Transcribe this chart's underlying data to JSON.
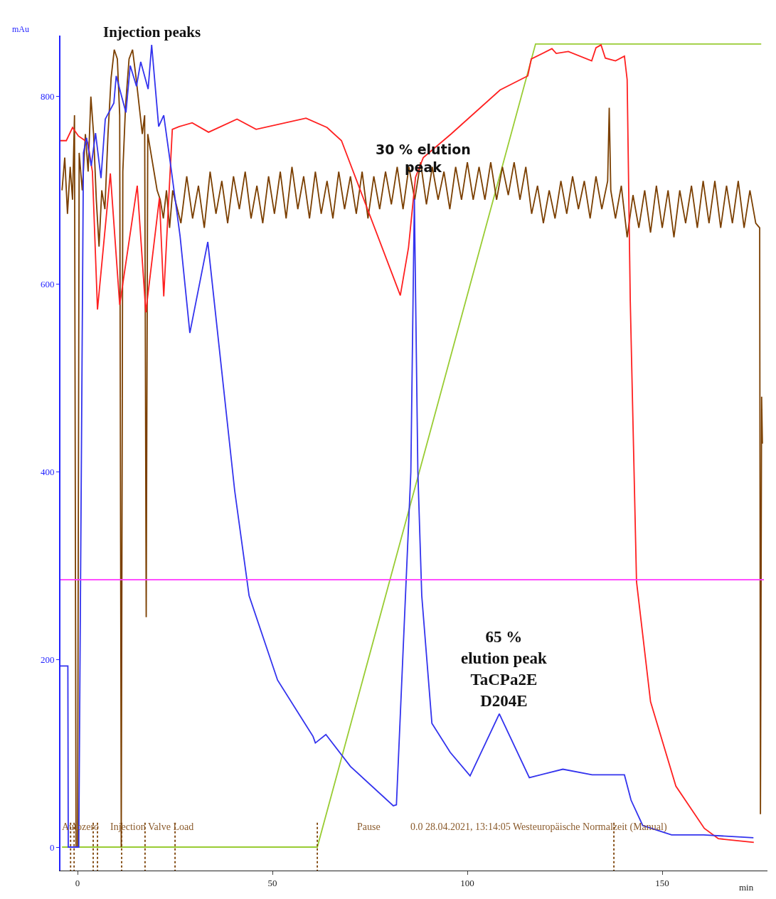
{
  "chart_data": {
    "type": "line",
    "xlabel": "min",
    "ylabel": "mAu",
    "xlim": [
      -4.4,
      177
    ],
    "ylim": [
      -25,
      865
    ],
    "xticks": [
      0,
      50,
      100,
      150
    ],
    "yticks": [
      0,
      200,
      400,
      600,
      800
    ],
    "marker": "none",
    "ref_lines": [
      {
        "axis": "y",
        "value": 285,
        "color": "#ff33ff"
      }
    ],
    "annotations": [
      {
        "text": "Injection peaks",
        "x": 19,
        "y": 858
      },
      {
        "text": "30 % elution\npeak",
        "x": 88.7,
        "y": 715
      },
      "65 %\nelution peak\nTaCPa2E\nD204E",
      "Autozero",
      "Injection Valve Load",
      "Pause",
      "0.0 28.04.2021, 13:14:05 Westeuropäische Normalzeit (Manual)"
    ],
    "series": [
      {
        "color": "#99cc33",
        "x": [
          -4,
          61.5,
          117.5,
          175.4
        ],
        "values": [
          0,
          0,
          856,
          856
        ]
      },
      {
        "color": "#7b3f00",
        "line_style": "dotted",
        "x": [
          -1.8,
          -1.8
        ],
        "values": [
          26,
          -25
        ]
      },
      {
        "color": "#7b3f00",
        "line_style": "dotted",
        "x": [
          -0.9,
          -0.9
        ],
        "values": [
          26,
          -25
        ]
      },
      {
        "color": "#7b3f00",
        "line_style": "dotted",
        "x": [
          4.0,
          4.0
        ],
        "values": [
          26,
          -25
        ]
      },
      {
        "color": "#7b3f00",
        "line_style": "dotted",
        "x": [
          5.1,
          5.1
        ],
        "values": [
          26,
          -25
        ]
      },
      {
        "color": "#7b3f00",
        "line_style": "dotted",
        "x": [
          11.3,
          11.3
        ],
        "values": [
          26,
          -25
        ]
      },
      {
        "color": "#7b3f00",
        "line_style": "dotted",
        "x": [
          17.3,
          17.3
        ],
        "values": [
          26,
          -25
        ]
      },
      {
        "color": "#7b3f00",
        "line_style": "dotted",
        "x": [
          25,
          25
        ],
        "values": [
          26,
          -25
        ]
      },
      {
        "color": "#7b3f00",
        "line_style": "dotted",
        "x": [
          61.5,
          61.5
        ],
        "values": [
          26,
          -25
        ]
      },
      {
        "color": "#7b3f00",
        "line_style": "dotted",
        "x": [
          137.6,
          137.6
        ],
        "values": [
          26,
          -25
        ]
      },
      {
        "color": "#7b3f00",
        "x": [
          -4,
          -3.3,
          -2.6,
          -1.9,
          -1.3,
          -0.8,
          -0.4,
          0,
          0.4,
          1.2,
          2,
          2.7,
          3.4,
          4.1,
          4.8,
          5.5,
          6.2,
          7,
          7.8,
          8.6,
          9.4,
          10.2,
          10.8,
          11.2,
          11.6,
          12.3,
          13.2,
          14.1,
          15,
          15.8,
          16.6,
          17.2,
          17.6,
          18,
          18.8,
          19.6,
          20.4,
          21.2,
          22,
          22.8,
          23.6,
          24.4,
          25,
          26.5,
          28,
          29.5,
          31,
          32.5,
          34,
          35.5,
          37,
          38.5,
          40,
          41.5,
          43,
          44.5,
          46,
          47.5,
          49,
          50.5,
          52,
          53.5,
          55,
          56.5,
          58,
          59.5,
          61,
          62.5,
          64,
          65.5,
          67,
          68.5,
          70,
          71.5,
          73,
          74.5,
          76,
          77.5,
          79,
          80.5,
          82,
          83.5,
          85,
          86.5,
          88,
          89.5,
          91,
          92.5,
          94,
          95.5,
          97,
          98.5,
          100,
          101.5,
          103,
          104.5,
          106,
          107.5,
          109,
          110.5,
          112,
          113.5,
          115,
          116.5,
          118,
          119.5,
          121,
          122.5,
          124,
          125.5,
          127,
          128.5,
          130,
          131.5,
          133,
          134.5,
          136,
          136.4,
          136.8,
          138,
          139.5,
          141,
          142.5,
          144,
          145.5,
          147,
          148.5,
          150,
          151.5,
          153,
          154.5,
          156,
          157.5,
          159,
          160.5,
          162,
          163.5,
          165,
          166.5,
          168,
          169.5,
          171,
          172.5,
          174,
          175,
          175.2,
          175.5,
          175.7
        ],
        "values": [
          700,
          735,
          675,
          725,
          690,
          780,
          0,
          0,
          740,
          700,
          760,
          720,
          800,
          760,
          690,
          640,
          700,
          680,
          760,
          820,
          850,
          840,
          780,
          0,
          720,
          790,
          840,
          850,
          820,
          790,
          760,
          780,
          245,
          760,
          740,
          720,
          700,
          690,
          670,
          700,
          660,
          700,
          690,
          665,
          715,
          670,
          705,
          660,
          720,
          675,
          710,
          665,
          715,
          680,
          720,
          670,
          705,
          665,
          715,
          675,
          720,
          670,
          725,
          680,
          715,
          670,
          720,
          675,
          710,
          670,
          720,
          680,
          715,
          675,
          720,
          670,
          715,
          680,
          720,
          685,
          725,
          680,
          725,
          690,
          730,
          685,
          725,
          690,
          720,
          680,
          725,
          690,
          730,
          690,
          725,
          690,
          730,
          690,
          725,
          695,
          730,
          690,
          725,
          675,
          705,
          665,
          700,
          670,
          710,
          675,
          715,
          680,
          710,
          670,
          715,
          680,
          710,
          788,
          700,
          670,
          705,
          650,
          695,
          660,
          700,
          655,
          705,
          660,
          700,
          650,
          700,
          665,
          705,
          660,
          710,
          665,
          710,
          660,
          705,
          665,
          710,
          660,
          700,
          665,
          660,
          35,
          480,
          430
        ]
      },
      {
        "color": "#ff2020",
        "x": [
          -4.4,
          -2.9,
          -1.3,
          0.2,
          2.6,
          3.8,
          5.1,
          8.4,
          10.8,
          15.3,
          17.5,
          21,
          22.1,
          24.3,
          26.1,
          29.4,
          33.6,
          40.9,
          45.8,
          58.6,
          64,
          67.7,
          82.8,
          84.9,
          86.7,
          88.7,
          95.8,
          108.4,
          115.5,
          116.4,
          121.7,
          122.8,
          125.9,
          131.9,
          133,
          134.3,
          135.4,
          138,
          140.3,
          141,
          141.8,
          143.4,
          147,
          153.5,
          160.8,
          164.4,
          173.5
        ],
        "values": [
          753,
          753,
          767,
          758,
          751,
          720,
          573,
          718,
          578,
          705,
          570,
          692,
          587,
          765,
          768,
          772,
          762,
          776,
          765,
          777,
          767,
          753,
          588,
          639,
          714,
          735,
          760,
          807,
          822,
          840,
          851,
          846,
          848,
          838,
          852,
          855,
          841,
          838,
          843,
          818,
          582,
          283,
          155,
          65,
          20,
          9,
          5
        ]
      },
      {
        "color": "#3333ee",
        "x": [
          -4.4,
          -2.5,
          -2.4,
          0.3,
          1.5,
          2.3,
          3.5,
          4.6,
          6.0,
          7.1,
          9.3,
          9.9,
          12.4,
          13.5,
          15.1,
          16.2,
          18.1,
          19.0,
          20.8,
          22.1,
          23.9,
          26.3,
          28.8,
          33.4,
          40.3,
          44,
          51.3,
          60.4,
          61,
          63.7,
          70,
          81,
          81.8,
          85.5,
          86.4,
          87.3,
          88.3,
          90.9,
          95.6,
          100.7,
          108.2,
          115.9,
          124.5,
          132,
          140.3,
          142,
          145,
          152.4,
          160.6,
          173.4
        ],
        "values": [
          193,
          193,
          0,
          0,
          740,
          756,
          726,
          761,
          713,
          776,
          793,
          822,
          783,
          833,
          811,
          837,
          808,
          855,
          768,
          780,
          726,
          651,
          548,
          645,
          380,
          268,
          178,
          118,
          111,
          120,
          86,
          44,
          45,
          400,
          691,
          400,
          268,
          132,
          101,
          76,
          142,
          74,
          83,
          77,
          77,
          50,
          23,
          13,
          13,
          10
        ]
      }
    ]
  }
}
